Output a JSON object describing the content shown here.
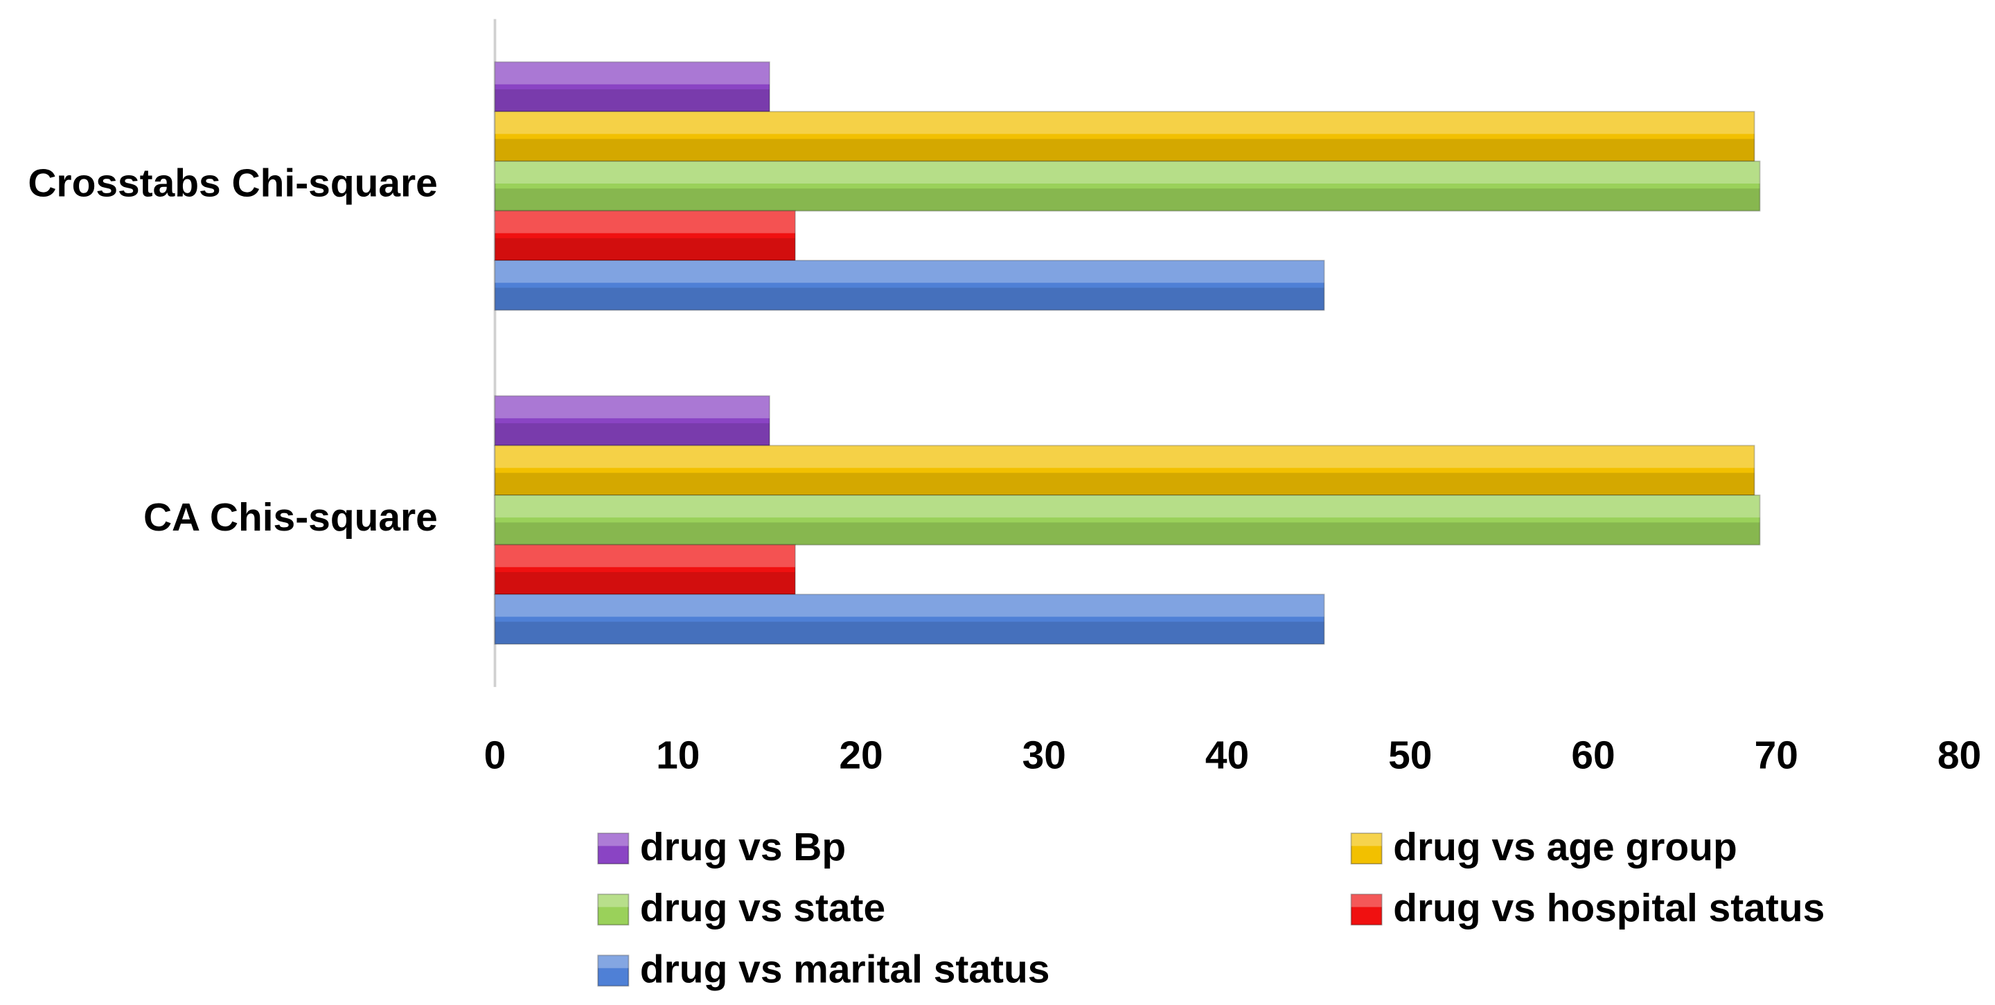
{
  "chart_data": {
    "type": "hbar",
    "categories": [
      "CA Chis-square",
      "Crosstabs Chi-square"
    ],
    "series": [
      {
        "name": "drug vs Bp",
        "color": "#8a44c4",
        "values": [
          15,
          15
        ]
      },
      {
        "name": "drug vs age group",
        "color": "#f2c000",
        "values": [
          68.8,
          68.8
        ]
      },
      {
        "name": "drug vs state",
        "color": "#9ad15a",
        "values": [
          69.1,
          69.1
        ]
      },
      {
        "name": "drug vs hospital status",
        "color": "#f01010",
        "values": [
          16.4,
          16.4
        ]
      },
      {
        "name": "drug vs marital status",
        "color": "#4f80d6",
        "values": [
          45.3,
          45.3
        ]
      }
    ],
    "xlim": [
      0,
      80
    ],
    "xticks": [
      0,
      10,
      20,
      30,
      40,
      50,
      60,
      70,
      80
    ],
    "grid": false,
    "legend": "bottom"
  }
}
